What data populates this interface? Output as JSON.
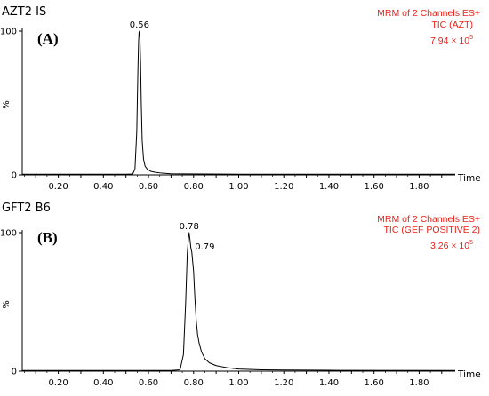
{
  "colors": {
    "trace": "#000000",
    "info_text": "#e8231a",
    "axis": "#000000"
  },
  "chart_data": [
    {
      "type": "line",
      "sample_title": "AZT2 IS",
      "panel_tag": "(A)",
      "info_lines": [
        "MRM of 2 Channels ES+",
        "TIC (AZT)"
      ],
      "intensity": {
        "mantissa": "7.94 × 10",
        "exponent": "5"
      },
      "xlabel": "Time",
      "ylabel": "%",
      "xlim": [
        0.04,
        1.96
      ],
      "ylim": [
        0,
        100
      ],
      "x_ticks": [
        "0.20",
        "0.40",
        "0.60",
        "0.80",
        "1.00",
        "1.20",
        "1.40",
        "1.60",
        "1.80"
      ],
      "y_ticks": [
        "0",
        "100"
      ],
      "grid": false,
      "peak_labels": [
        {
          "x": 0.56,
          "y": 100,
          "text": "0.56"
        }
      ],
      "series": [
        {
          "x": [
            0.04,
            0.4,
            0.5,
            0.53,
            0.54,
            0.548,
            0.553,
            0.556,
            0.558,
            0.56,
            0.562,
            0.565,
            0.568,
            0.572,
            0.578,
            0.585,
            0.595,
            0.61,
            0.63,
            0.66,
            0.7,
            0.75,
            0.85,
            1.0,
            1.4,
            1.96
          ],
          "values": [
            0.5,
            0.5,
            0.5,
            0.6,
            4,
            30,
            72,
            92,
            99,
            100,
            96,
            78,
            50,
            24,
            11,
            6,
            4,
            2.5,
            1.8,
            1.2,
            0.8,
            0.7,
            0.6,
            0.5,
            0.5,
            0.5
          ]
        }
      ]
    },
    {
      "type": "line",
      "sample_title": "GFT2 B6",
      "panel_tag": "(B)",
      "info_lines": [
        "MRM of 2 Channels ES+",
        "TIC (GEF POSITIVE 2)"
      ],
      "intensity": {
        "mantissa": "3.26 × 10",
        "exponent": "5"
      },
      "xlabel": "Time",
      "ylabel": "%",
      "xlim": [
        0.04,
        1.96
      ],
      "ylim": [
        0,
        100
      ],
      "x_ticks": [
        "0.20",
        "0.40",
        "0.60",
        "0.80",
        "1.00",
        "1.20",
        "1.40",
        "1.60",
        "1.80"
      ],
      "y_ticks": [
        "0",
        "100"
      ],
      "grid": false,
      "peak_labels": [
        {
          "x": 0.78,
          "y": 100,
          "text": "0.78"
        },
        {
          "x": 0.79,
          "y": 89,
          "text": "0.79"
        }
      ],
      "series": [
        {
          "x": [
            0.04,
            0.5,
            0.7,
            0.74,
            0.755,
            0.765,
            0.772,
            0.778,
            0.78,
            0.784,
            0.788,
            0.792,
            0.8,
            0.806,
            0.812,
            0.818,
            0.825,
            0.835,
            0.85,
            0.87,
            0.9,
            0.95,
            1.0,
            1.1,
            1.2,
            1.4,
            1.96
          ],
          "values": [
            0.5,
            0.5,
            0.5,
            1,
            12,
            50,
            85,
            98,
            100,
            95,
            89,
            86,
            72,
            52,
            36,
            26,
            20,
            14,
            9,
            6,
            4,
            2.5,
            1.5,
            1,
            0.8,
            0.6,
            0.5
          ]
        }
      ]
    }
  ]
}
